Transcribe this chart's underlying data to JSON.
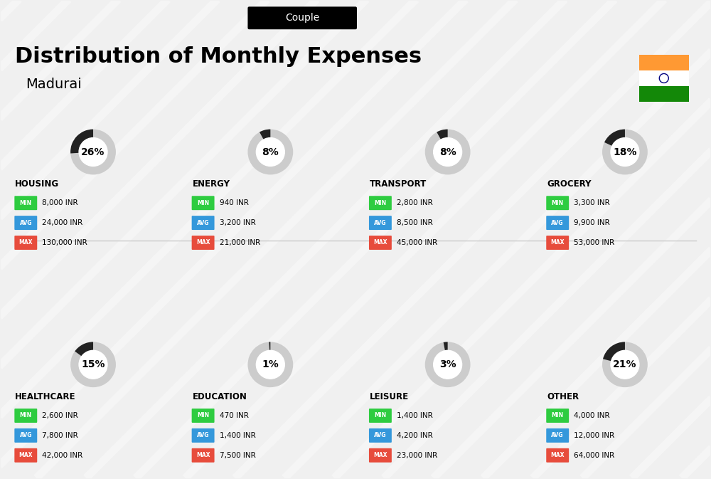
{
  "title": "Distribution of Monthly Expenses",
  "subtitle": "Couple",
  "city": "Madurai",
  "background_color": "#f0f0f0",
  "categories": [
    {
      "name": "HOUSING",
      "percent": 26,
      "min_val": "8,000 INR",
      "avg_val": "24,000 INR",
      "max_val": "130,000 INR",
      "row": 0,
      "col": 0
    },
    {
      "name": "ENERGY",
      "percent": 8,
      "min_val": "940 INR",
      "avg_val": "3,200 INR",
      "max_val": "21,000 INR",
      "row": 0,
      "col": 1
    },
    {
      "name": "TRANSPORT",
      "percent": 8,
      "min_val": "2,800 INR",
      "avg_val": "8,500 INR",
      "max_val": "45,000 INR",
      "row": 0,
      "col": 2
    },
    {
      "name": "GROCERY",
      "percent": 18,
      "min_val": "3,300 INR",
      "avg_val": "9,900 INR",
      "max_val": "53,000 INR",
      "row": 0,
      "col": 3
    },
    {
      "name": "HEALTHCARE",
      "percent": 15,
      "min_val": "2,600 INR",
      "avg_val": "7,800 INR",
      "max_val": "42,000 INR",
      "row": 1,
      "col": 0
    },
    {
      "name": "EDUCATION",
      "percent": 1,
      "min_val": "470 INR",
      "avg_val": "1,400 INR",
      "max_val": "7,500 INR",
      "row": 1,
      "col": 1
    },
    {
      "name": "LEISURE",
      "percent": 3,
      "min_val": "1,400 INR",
      "avg_val": "4,200 INR",
      "max_val": "23,000 INR",
      "row": 1,
      "col": 2
    },
    {
      "name": "OTHER",
      "percent": 21,
      "min_val": "4,000 INR",
      "avg_val": "12,000 INR",
      "max_val": "64,000 INR",
      "row": 1,
      "col": 3
    }
  ],
  "min_color": "#2ecc40",
  "avg_color": "#3498db",
  "max_color": "#e74c3c",
  "donut_color": "#222222",
  "donut_bg": "#cccccc",
  "india_flag_orange": "#FF9933",
  "india_flag_green": "#138808"
}
